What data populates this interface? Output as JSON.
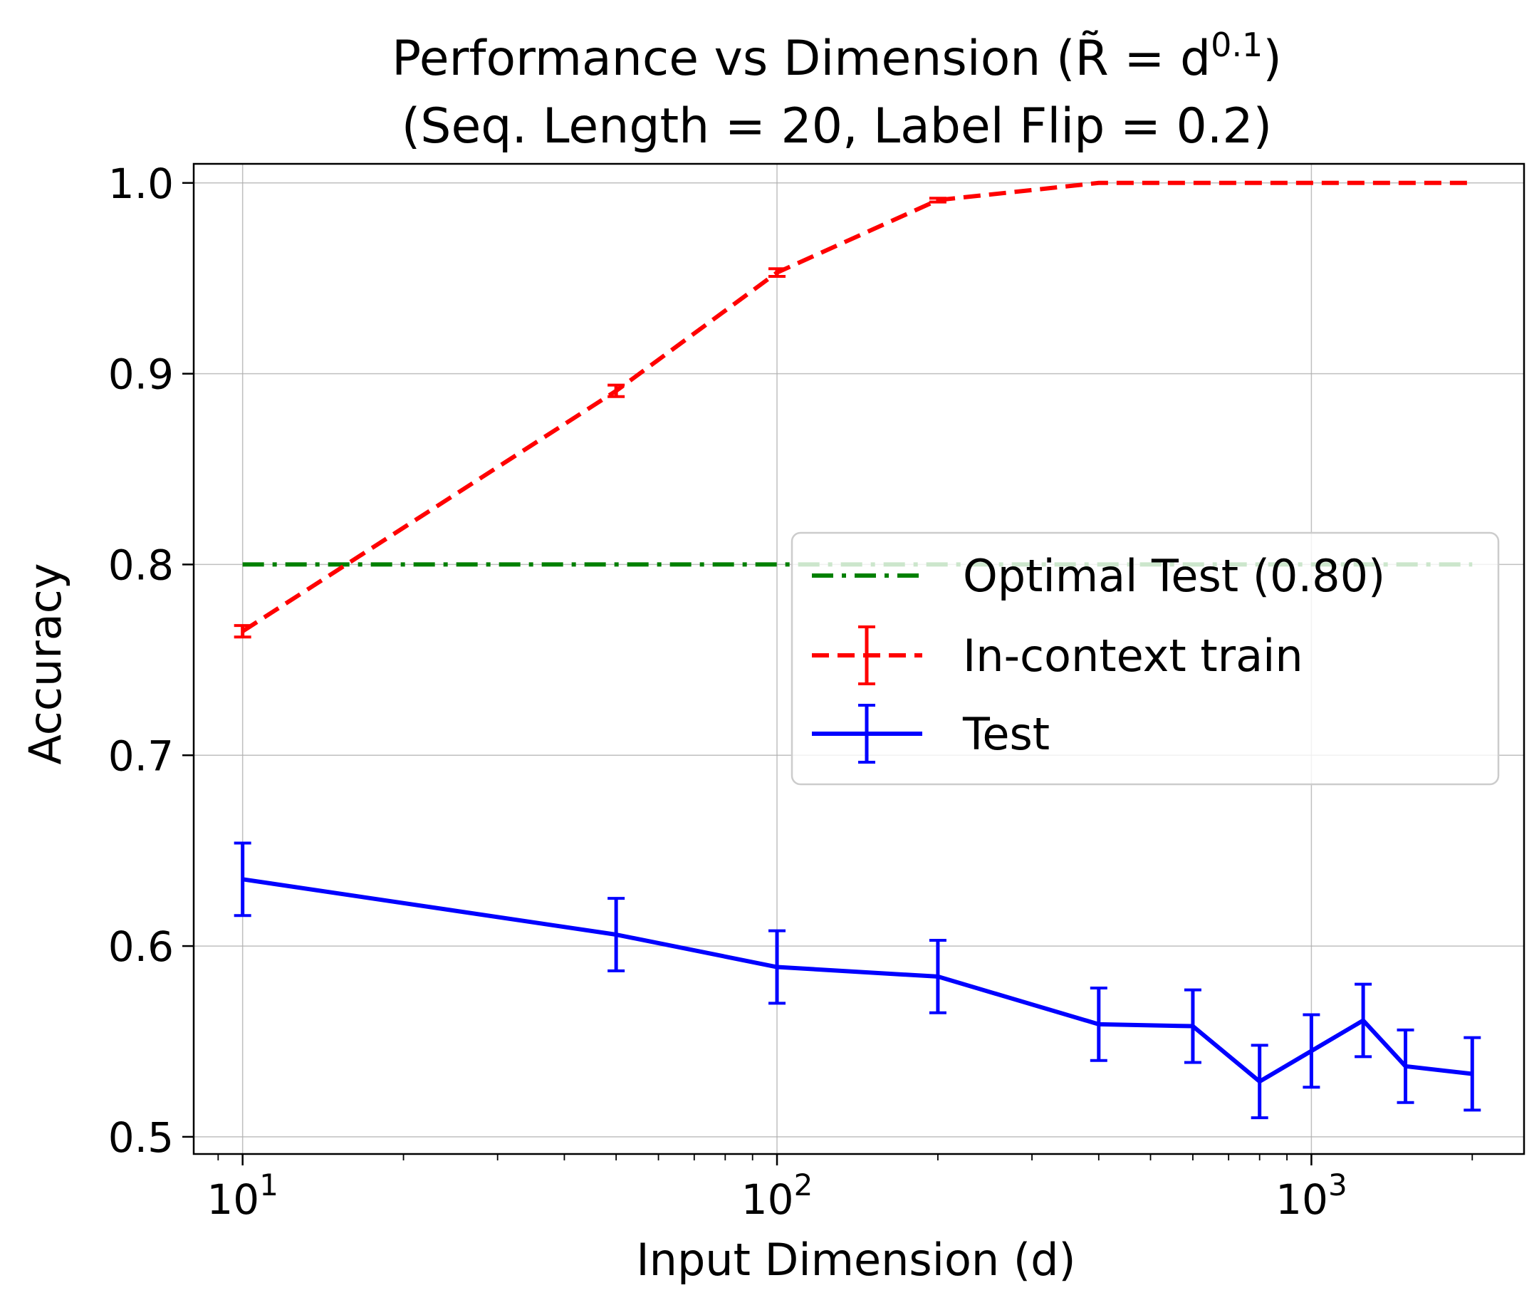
{
  "chart_data": {
    "type": "line",
    "title_line1_main": "Performance vs Dimension (",
    "title_line1_sym": "R̃",
    "title_line1_eq": " = d",
    "title_line1_sup": "0.1",
    "title_line1_close": ")",
    "title_line2": "(Seq. Length = 20, Label Flip = 0.2)",
    "xlabel": "Input Dimension (d)",
    "ylabel": "Accuracy",
    "xscale": "log",
    "xlim": [
      8.1,
      2500
    ],
    "ylim": [
      0.491,
      1.01
    ],
    "grid": true,
    "legend_position": "center-right",
    "x_ticks": [
      {
        "value": 10,
        "base": "10",
        "exp": "1"
      },
      {
        "value": 100,
        "base": "10",
        "exp": "2"
      },
      {
        "value": 1000,
        "base": "10",
        "exp": "3"
      }
    ],
    "y_ticks": [
      {
        "value": 0.5,
        "label": "0.5"
      },
      {
        "value": 0.6,
        "label": "0.6"
      },
      {
        "value": 0.7,
        "label": "0.7"
      },
      {
        "value": 0.8,
        "label": "0.8"
      },
      {
        "value": 0.9,
        "label": "0.9"
      },
      {
        "value": 1.0,
        "label": "1.0"
      }
    ],
    "series": [
      {
        "name": "Optimal Test (0.80)",
        "color": "#008000",
        "style": "dashdot",
        "x": [
          10,
          2000
        ],
        "y": [
          0.8,
          0.8
        ]
      },
      {
        "name": "In-context train",
        "color": "#ff0000",
        "style": "dashed",
        "x": [
          10,
          50,
          100,
          200,
          400,
          600,
          800,
          1000,
          1250,
          1500,
          2000
        ],
        "y": [
          0.765,
          0.891,
          0.953,
          0.991,
          1.0,
          1.0,
          1.0,
          1.0,
          1.0,
          1.0,
          1.0
        ],
        "err": [
          0.003,
          0.003,
          0.002,
          0.001,
          0,
          0,
          0,
          0,
          0,
          0,
          0
        ]
      },
      {
        "name": "Test",
        "color": "#0000ff",
        "style": "solid",
        "x": [
          10,
          50,
          100,
          200,
          400,
          600,
          800,
          1000,
          1250,
          1500,
          2000
        ],
        "y": [
          0.635,
          0.606,
          0.589,
          0.584,
          0.559,
          0.558,
          0.529,
          0.545,
          0.561,
          0.537,
          0.533
        ],
        "err": [
          0.019,
          0.019,
          0.019,
          0.019,
          0.019,
          0.019,
          0.019,
          0.019,
          0.019,
          0.019,
          0.019
        ]
      }
    ]
  }
}
